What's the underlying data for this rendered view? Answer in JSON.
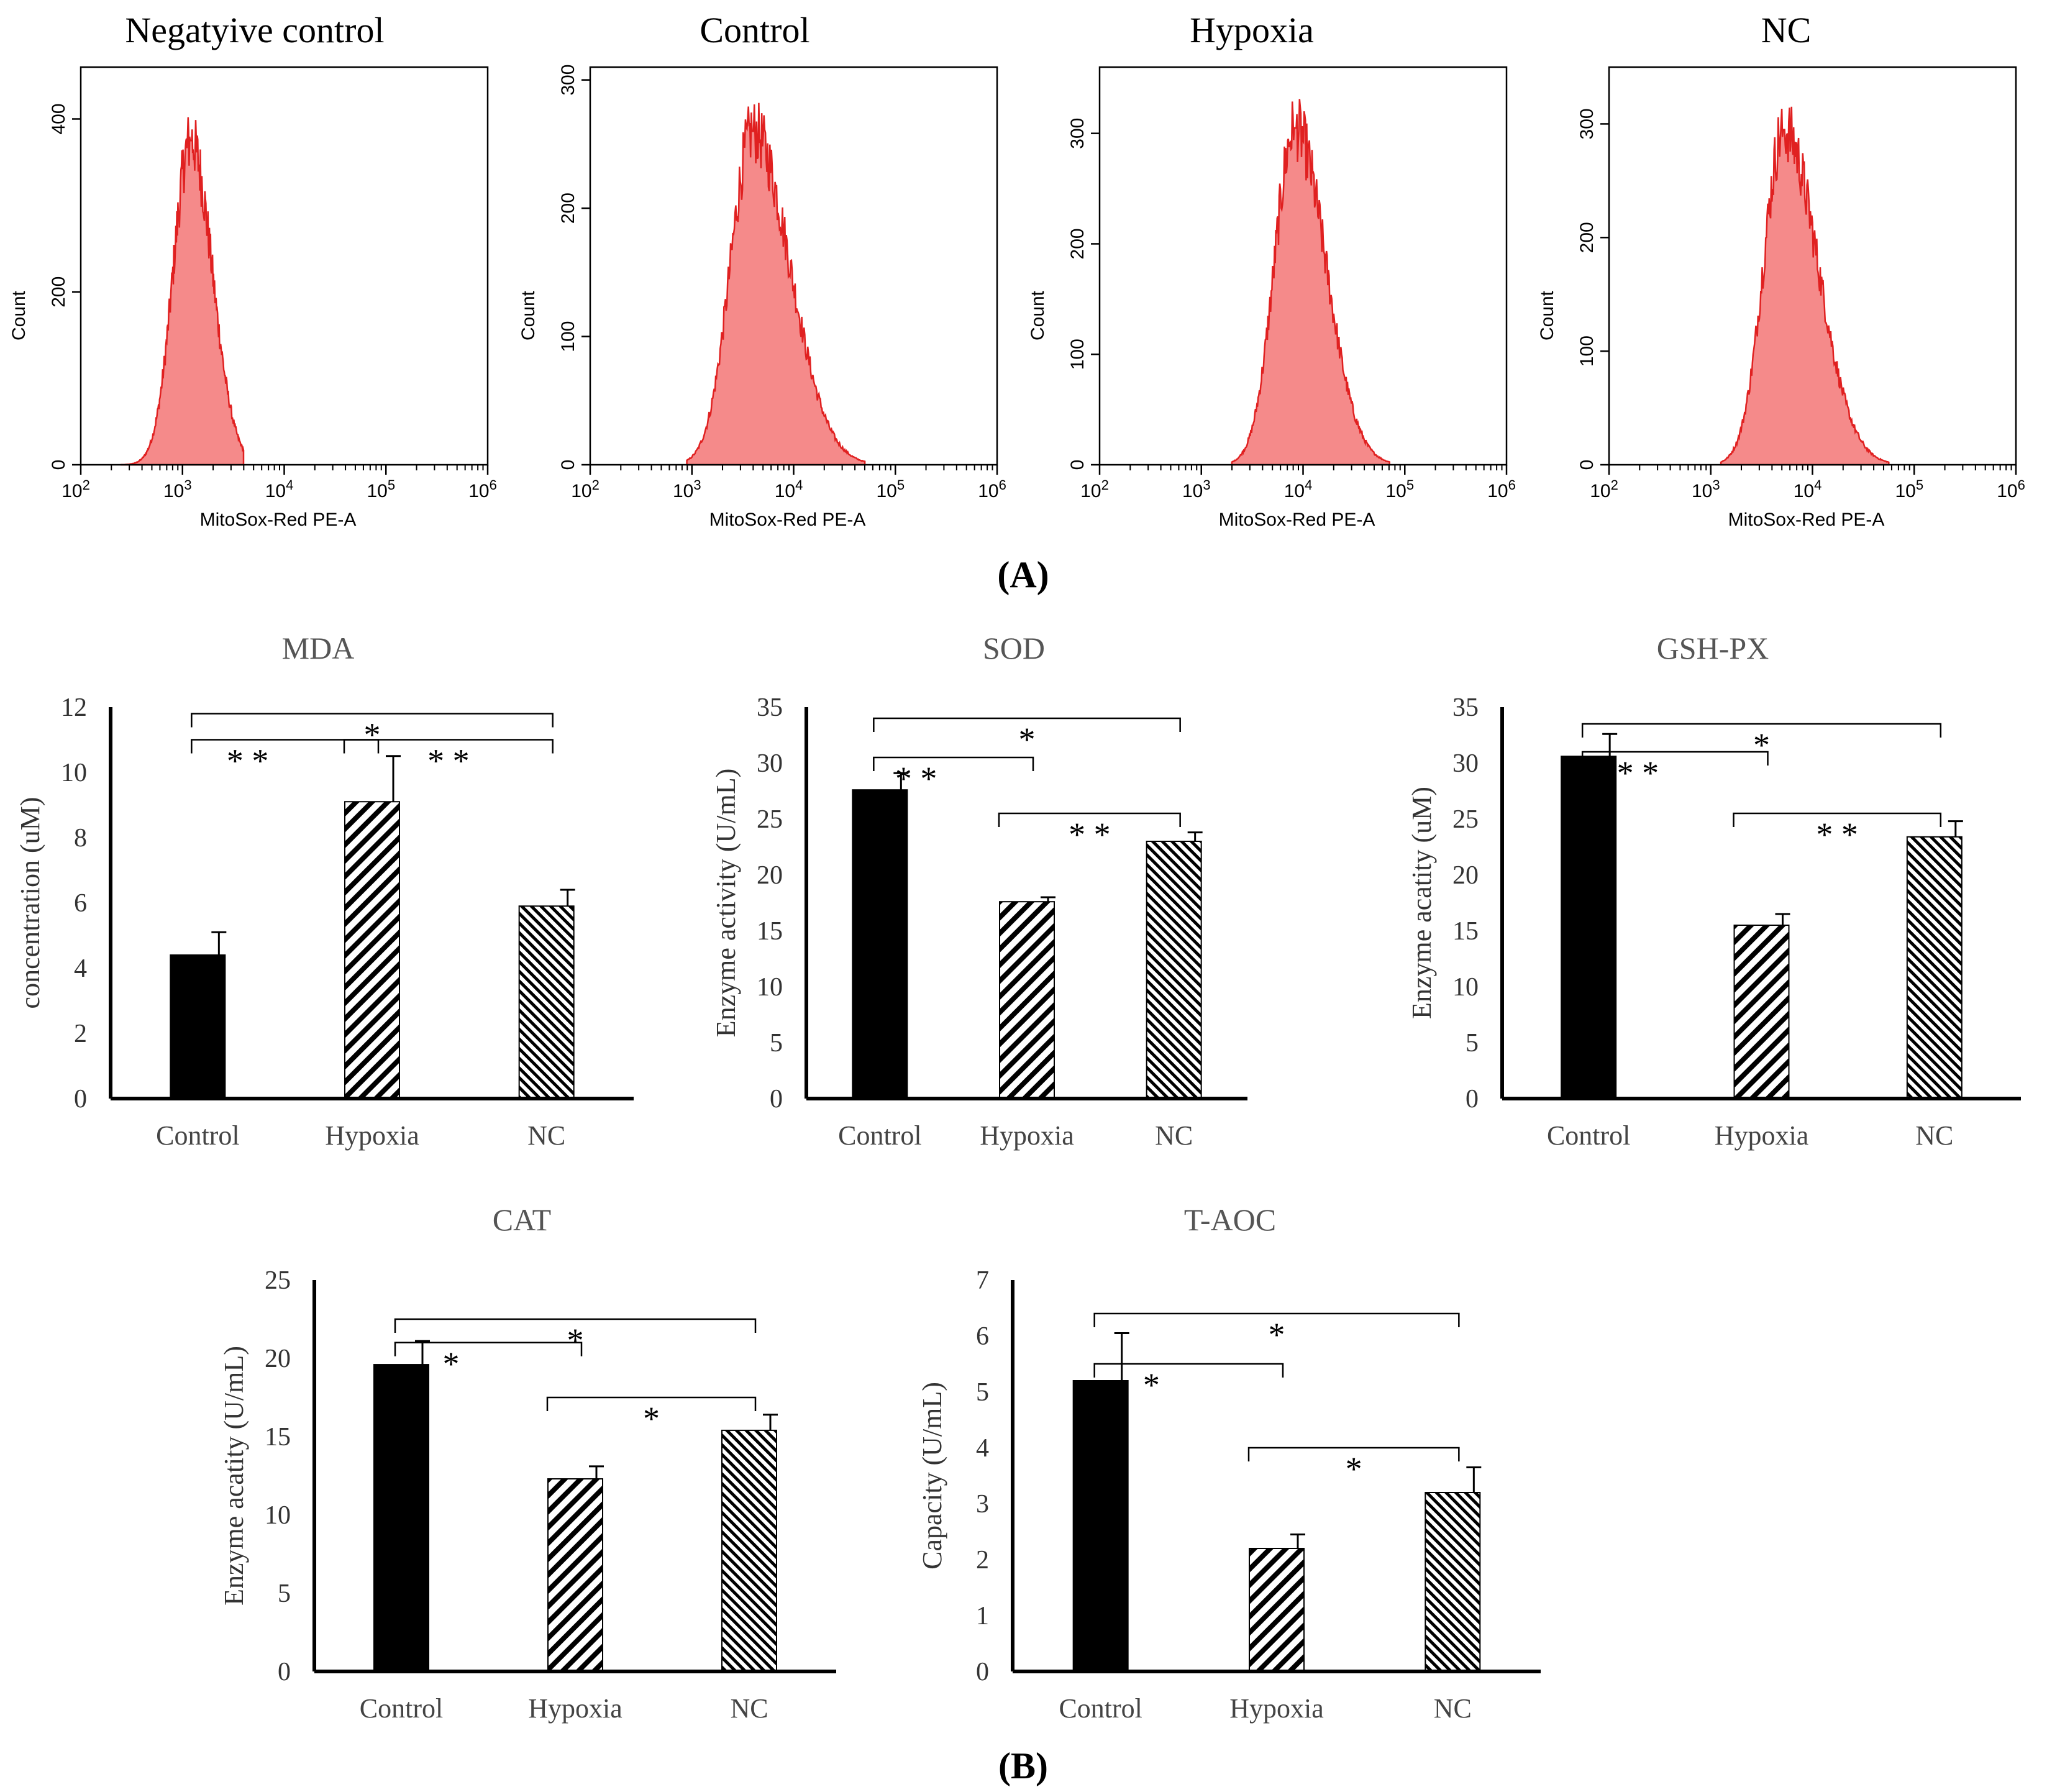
{
  "panel_labels": {
    "a": "(A)",
    "b": "(B)"
  },
  "colors": {
    "hist_fill": "#f58a8a",
    "hist_stroke": "#e02020",
    "bar": "#000000"
  },
  "chart_data": [
    {
      "type": "area",
      "title": "Negatyive control",
      "xlabel": "MitoSox-Red PE-A",
      "ylabel": "Count",
      "x_scale": "log10",
      "xlim": [
        2,
        6
      ],
      "x_ticks": [
        {
          "base": "10",
          "exp": "2"
        },
        {
          "base": "10",
          "exp": "3"
        },
        {
          "base": "10",
          "exp": "4"
        },
        {
          "base": "10",
          "exp": "5"
        },
        {
          "base": "10",
          "exp": "6"
        }
      ],
      "ylim": [
        0,
        460
      ],
      "y_ticks": [
        "0",
        "200",
        "400"
      ],
      "y_tick_values": [
        0,
        200,
        400
      ],
      "peak_log": 3.08,
      "peak_count": 375,
      "spread_left": 0.17,
      "spread_right": 0.21,
      "x_range": [
        2.4,
        3.6
      ]
    },
    {
      "type": "area",
      "title": "Control",
      "xlabel": "MitoSox-Red PE-A",
      "ylabel": "Count",
      "x_scale": "log10",
      "xlim": [
        2,
        6
      ],
      "x_ticks": [
        {
          "base": "10",
          "exp": "2"
        },
        {
          "base": "10",
          "exp": "3"
        },
        {
          "base": "10",
          "exp": "4"
        },
        {
          "base": "10",
          "exp": "5"
        },
        {
          "base": "10",
          "exp": "6"
        }
      ],
      "ylim": [
        0,
        310
      ],
      "y_ticks": [
        "0",
        "100",
        "200",
        "300"
      ],
      "y_tick_values": [
        0,
        100,
        200,
        300
      ],
      "peak_log": 3.6,
      "peak_count": 260,
      "spread_left": 0.22,
      "spread_right": 0.36,
      "x_range": [
        2.95,
        4.7
      ]
    },
    {
      "type": "area",
      "title": "Hypoxia",
      "xlabel": "MitoSox-Red PE-A",
      "ylabel": "Count",
      "x_scale": "log10",
      "xlim": [
        2,
        6
      ],
      "x_ticks": [
        {
          "base": "10",
          "exp": "2"
        },
        {
          "base": "10",
          "exp": "3"
        },
        {
          "base": "10",
          "exp": "4"
        },
        {
          "base": "10",
          "exp": "5"
        },
        {
          "base": "10",
          "exp": "6"
        }
      ],
      "ylim": [
        0,
        360
      ],
      "y_ticks": [
        "0",
        "100",
        "200",
        "300"
      ],
      "y_tick_values": [
        0,
        100,
        200,
        300
      ],
      "peak_log": 3.92,
      "peak_count": 305,
      "spread_left": 0.2,
      "spread_right": 0.3,
      "x_range": [
        3.3,
        4.85
      ]
    },
    {
      "type": "area",
      "title": "NC",
      "xlabel": "MitoSox-Red PE-A",
      "ylabel": "Count",
      "x_scale": "log10",
      "xlim": [
        2,
        6
      ],
      "x_ticks": [
        {
          "base": "10",
          "exp": "2"
        },
        {
          "base": "10",
          "exp": "3"
        },
        {
          "base": "10",
          "exp": "4"
        },
        {
          "base": "10",
          "exp": "5"
        },
        {
          "base": "10",
          "exp": "6"
        }
      ],
      "ylim": [
        0,
        350
      ],
      "y_ticks": [
        "0",
        "100",
        "200",
        "300"
      ],
      "y_tick_values": [
        0,
        100,
        200,
        300
      ],
      "peak_log": 3.72,
      "peak_count": 295,
      "spread_left": 0.2,
      "spread_right": 0.33,
      "x_range": [
        3.1,
        4.75
      ]
    },
    {
      "type": "bar",
      "title": "MDA",
      "ylabel": "concentration (uM)",
      "categories": [
        "Control",
        "Hypoxia",
        "NC"
      ],
      "values": [
        4.4,
        9.1,
        5.9
      ],
      "errors": [
        0.7,
        1.4,
        0.5
      ],
      "ylim": [
        0,
        12
      ],
      "y_ticks": [
        "0",
        "2",
        "4",
        "6",
        "8",
        "10",
        "12"
      ],
      "y_tick_values": [
        0,
        2,
        4,
        6,
        8,
        10,
        12
      ],
      "significance": [
        {
          "from": 0,
          "to": 1,
          "label": "**",
          "level": 11.0
        },
        {
          "from": 1,
          "to": 2,
          "label": "**",
          "level": 11.0
        },
        {
          "from": 0,
          "to": 2,
          "label": "*",
          "level": 11.8
        }
      ]
    },
    {
      "type": "bar",
      "title": "SOD",
      "ylabel": "Enzyme activity (U/mL)",
      "categories": [
        "Control",
        "Hypoxia",
        "NC"
      ],
      "values": [
        27.6,
        17.6,
        23.0
      ],
      "errors": [
        1.5,
        0.4,
        0.8
      ],
      "ylim": [
        0,
        35
      ],
      "y_ticks": [
        "0",
        "5",
        "10",
        "15",
        "20",
        "25",
        "30",
        "35"
      ],
      "y_tick_values": [
        0,
        5,
        10,
        15,
        20,
        25,
        30,
        35
      ],
      "significance": [
        {
          "from": 0,
          "to": 1,
          "label": "**",
          "level": 30.5
        },
        {
          "from": 1,
          "to": 2,
          "label": "**",
          "level": 25.5
        },
        {
          "from": 0,
          "to": 2,
          "label": "*",
          "level": 34.0
        }
      ]
    },
    {
      "type": "bar",
      "title": "GSH-PX",
      "ylabel": "Enzyme acatity (uM)",
      "categories": [
        "Control",
        "Hypoxia",
        "NC"
      ],
      "values": [
        30.6,
        15.5,
        23.4
      ],
      "errors": [
        2.0,
        1.0,
        1.4
      ],
      "ylim": [
        0,
        35
      ],
      "y_ticks": [
        "0",
        "5",
        "10",
        "15",
        "20",
        "25",
        "30",
        "35"
      ],
      "y_tick_values": [
        0,
        5,
        10,
        15,
        20,
        25,
        30,
        35
      ],
      "significance": [
        {
          "from": 0,
          "to": 1,
          "label": "**",
          "level": 31.0
        },
        {
          "from": 1,
          "to": 2,
          "label": "**",
          "level": 25.5
        },
        {
          "from": 0,
          "to": 2,
          "label": "*",
          "level": 33.5
        }
      ]
    },
    {
      "type": "bar",
      "title": "CAT",
      "ylabel": "Enzyme acatity (U/mL)",
      "categories": [
        "Control",
        "Hypoxia",
        "NC"
      ],
      "values": [
        19.6,
        12.3,
        15.4
      ],
      "errors": [
        1.5,
        0.8,
        1.0
      ],
      "ylim": [
        0,
        25
      ],
      "y_ticks": [
        "0",
        "5",
        "10",
        "15",
        "20",
        "25"
      ],
      "y_tick_values": [
        0,
        5,
        10,
        15,
        20,
        25
      ],
      "significance": [
        {
          "from": 0,
          "to": 1,
          "label": "*",
          "level": 21.0
        },
        {
          "from": 1,
          "to": 2,
          "label": "*",
          "level": 17.5
        },
        {
          "from": 0,
          "to": 2,
          "label": "*",
          "level": 22.5
        }
      ]
    },
    {
      "type": "bar",
      "title": "T-AOC",
      "ylabel": "Capacity (U/mL)",
      "categories": [
        "Control",
        "Hypoxia",
        "NC"
      ],
      "values": [
        5.2,
        2.2,
        3.2
      ],
      "errors": [
        0.85,
        0.25,
        0.45
      ],
      "ylim": [
        0,
        7
      ],
      "y_ticks": [
        "0",
        "1",
        "2",
        "3",
        "4",
        "5",
        "6",
        "7"
      ],
      "y_tick_values": [
        0,
        1,
        2,
        3,
        4,
        5,
        6,
        7
      ],
      "significance": [
        {
          "from": 0,
          "to": 1,
          "label": "*",
          "level": 5.5
        },
        {
          "from": 1,
          "to": 2,
          "label": "*",
          "level": 4.0
        },
        {
          "from": 0,
          "to": 2,
          "label": "*",
          "level": 6.4
        }
      ]
    }
  ]
}
